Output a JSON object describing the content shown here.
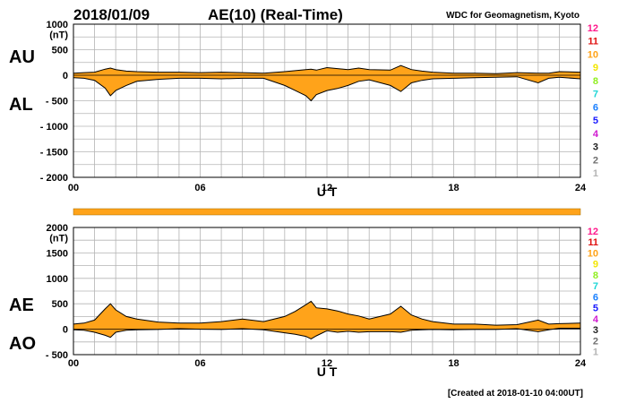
{
  "header": {
    "date": "2018/01/09",
    "title": "AE(10) (Real-Time)",
    "source": "WDC for Geomagnetism, Kyoto"
  },
  "footer": {
    "created": "[Created at 2018-01-10 04:00UT]"
  },
  "colors": {
    "fill": "#ffa31a",
    "grid": "#b4b4b4",
    "line": "#000000",
    "coverage_bar": "#ffa31a"
  },
  "station_count": {
    "labels": [
      "12",
      "11",
      "10",
      "9",
      "8",
      "7",
      "6",
      "5",
      "4",
      "3",
      "2",
      "1"
    ],
    "colors": [
      "#ff1a8c",
      "#e01010",
      "#ffa31a",
      "#f2e600",
      "#90ee20",
      "#1fd6d6",
      "#1a80ff",
      "#1a1aff",
      "#d01ad0",
      "#222222",
      "#707070",
      "#b4b4b4"
    ]
  },
  "chart_data": [
    {
      "type": "area",
      "panel": "AU/AL",
      "panel_labels": {
        "upper": "AU",
        "lower": "AL"
      },
      "xlabel": "U T",
      "ylabel": "(nT)",
      "xlim": [
        0,
        24
      ],
      "ylim": [
        -2000,
        1000
      ],
      "xticks": [
        "00",
        "06",
        "12",
        "18",
        "24"
      ],
      "yticks": [
        "1000",
        "500",
        "0",
        "- 500",
        "- 1000",
        "- 1500",
        "- 2000"
      ],
      "x_hours": [
        0,
        0.5,
        1,
        1.5,
        1.75,
        2,
        2.5,
        3,
        4,
        5,
        6,
        7,
        8,
        9,
        10,
        10.5,
        11,
        11.25,
        11.5,
        12,
        12.5,
        13,
        13.5,
        14,
        15,
        15.5,
        16,
        16.5,
        17,
        18,
        19,
        20,
        21,
        22,
        22.5,
        23,
        24
      ],
      "series": [
        {
          "name": "AU",
          "values": [
            40,
            50,
            60,
            120,
            140,
            110,
            80,
            70,
            60,
            60,
            50,
            60,
            50,
            40,
            70,
            90,
            110,
            120,
            100,
            150,
            130,
            110,
            140,
            110,
            100,
            190,
            110,
            80,
            60,
            40,
            40,
            30,
            50,
            40,
            40,
            70,
            60
          ]
        },
        {
          "name": "AL",
          "values": [
            -50,
            -60,
            -100,
            -250,
            -400,
            -300,
            -200,
            -120,
            -80,
            -60,
            -60,
            -70,
            -60,
            -60,
            -200,
            -300,
            -400,
            -500,
            -380,
            -300,
            -260,
            -200,
            -120,
            -90,
            -200,
            -320,
            -150,
            -100,
            -70,
            -60,
            -50,
            -40,
            -30,
            -150,
            -60,
            -40,
            -70
          ]
        }
      ]
    },
    {
      "type": "area",
      "panel": "AE/AO",
      "panel_labels": {
        "upper": "AE",
        "lower": "AO"
      },
      "xlabel": "U T",
      "ylabel": "(nT)",
      "xlim": [
        0,
        24
      ],
      "ylim": [
        -500,
        2000
      ],
      "xticks": [
        "00",
        "06",
        "12",
        "18",
        "24"
      ],
      "yticks": [
        "2000",
        "1500",
        "1000",
        "500",
        "0",
        "- 500"
      ],
      "x_hours": [
        0,
        0.5,
        1,
        1.5,
        1.75,
        2,
        2.5,
        3,
        4,
        5,
        6,
        7,
        8,
        9,
        10,
        10.5,
        11,
        11.25,
        11.5,
        12,
        12.5,
        13,
        13.5,
        14,
        15,
        15.5,
        16,
        16.5,
        17,
        18,
        19,
        20,
        21,
        22,
        22.5,
        23,
        24
      ],
      "series": [
        {
          "name": "AE",
          "values": [
            100,
            120,
            180,
            400,
            500,
            380,
            250,
            200,
            140,
            120,
            120,
            150,
            200,
            150,
            250,
            350,
            480,
            550,
            420,
            400,
            360,
            300,
            260,
            200,
            300,
            450,
            280,
            200,
            150,
            100,
            100,
            80,
            90,
            180,
            100,
            110,
            120
          ]
        },
        {
          "name": "AO",
          "values": [
            -10,
            -20,
            -60,
            -120,
            -160,
            -60,
            -20,
            -10,
            -5,
            10,
            0,
            -5,
            10,
            -10,
            -70,
            -100,
            -140,
            -190,
            -130,
            -30,
            -60,
            -40,
            -60,
            -50,
            -50,
            -60,
            -20,
            -10,
            -5,
            -10,
            -5,
            -5,
            10,
            -50,
            -10,
            20,
            20
          ]
        }
      ]
    }
  ]
}
